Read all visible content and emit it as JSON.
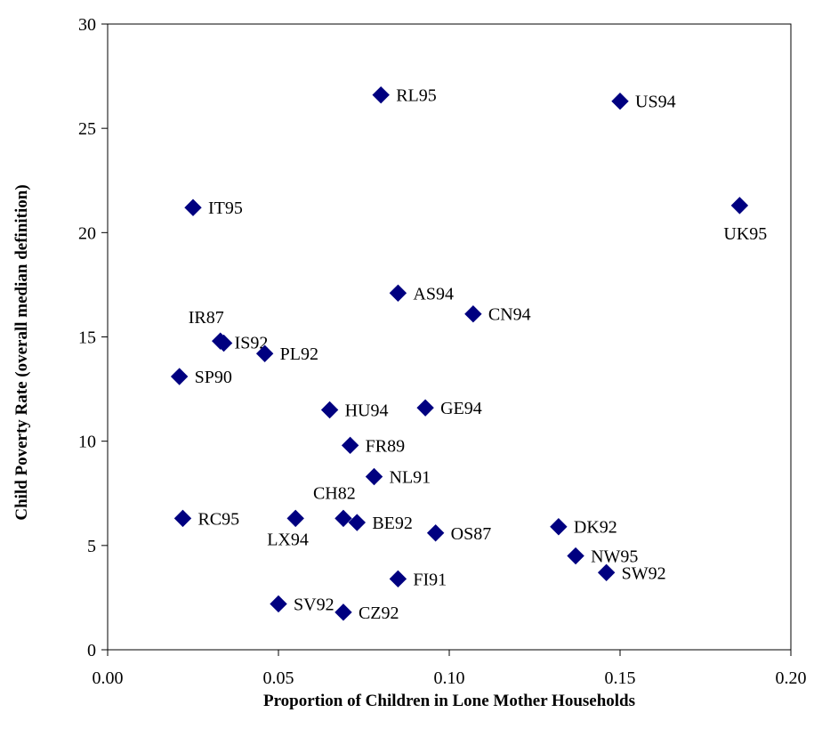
{
  "chart_data": {
    "type": "scatter",
    "title": "",
    "xlabel": "Proportion of Children in Lone Mother Households",
    "ylabel": "Child Poverty Rate (overall median definition)",
    "xlim": [
      0.0,
      0.2
    ],
    "ylim": [
      0,
      30
    ],
    "x_ticks": [
      "0.00",
      "0.05",
      "0.10",
      "0.15",
      "0.20"
    ],
    "y_ticks": [
      "0",
      "5",
      "10",
      "15",
      "20",
      "25",
      "30"
    ],
    "grid": false,
    "legend": "none",
    "marker_color": "#000080",
    "points": [
      {
        "label": "RL95",
        "x": 0.08,
        "y": 26.6
      },
      {
        "label": "US94",
        "x": 0.15,
        "y": 26.3
      },
      {
        "label": "IT95",
        "x": 0.025,
        "y": 21.2
      },
      {
        "label": "UK95",
        "x": 0.185,
        "y": 21.3
      },
      {
        "label": "AS94",
        "x": 0.085,
        "y": 17.1
      },
      {
        "label": "CN94",
        "x": 0.107,
        "y": 16.1
      },
      {
        "label": "IR87",
        "x": 0.033,
        "y": 14.8
      },
      {
        "label": "IS92",
        "x": 0.034,
        "y": 14.7
      },
      {
        "label": "PL92",
        "x": 0.046,
        "y": 14.2
      },
      {
        "label": "SP90",
        "x": 0.021,
        "y": 13.1
      },
      {
        "label": "HU94",
        "x": 0.065,
        "y": 11.5
      },
      {
        "label": "GE94",
        "x": 0.093,
        "y": 11.6
      },
      {
        "label": "FR89",
        "x": 0.071,
        "y": 9.8
      },
      {
        "label": "NL91",
        "x": 0.078,
        "y": 8.3
      },
      {
        "label": "RC95",
        "x": 0.022,
        "y": 6.3
      },
      {
        "label": "LX94",
        "x": 0.055,
        "y": 6.3
      },
      {
        "label": "CH82",
        "x": 0.069,
        "y": 6.3
      },
      {
        "label": "BE92",
        "x": 0.073,
        "y": 6.1
      },
      {
        "label": "OS87",
        "x": 0.096,
        "y": 5.6
      },
      {
        "label": "DK92",
        "x": 0.132,
        "y": 5.9
      },
      {
        "label": "NW95",
        "x": 0.137,
        "y": 4.5
      },
      {
        "label": "SW92",
        "x": 0.146,
        "y": 3.7
      },
      {
        "label": "FI91",
        "x": 0.085,
        "y": 3.4
      },
      {
        "label": "SV92",
        "x": 0.05,
        "y": 2.2
      },
      {
        "label": "CZ92",
        "x": 0.069,
        "y": 1.8
      }
    ]
  }
}
